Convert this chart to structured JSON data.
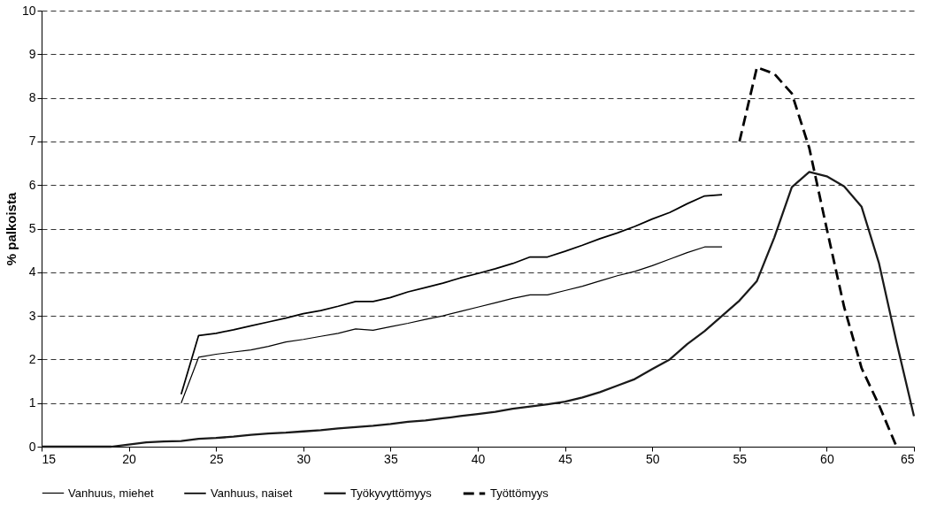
{
  "chart_data": {
    "type": "line",
    "ylabel": "% palkoista",
    "xlim": [
      15,
      65
    ],
    "xticks": [
      15,
      20,
      25,
      30,
      35,
      40,
      45,
      50,
      55,
      60,
      65
    ],
    "ylim": [
      0,
      10
    ],
    "yticks": [
      0,
      1,
      2,
      3,
      4,
      5,
      6,
      7,
      8,
      9,
      10
    ],
    "grid": "y",
    "legend": "bottom",
    "marker": "none",
    "series": [
      {
        "name": "Vanhuus, miehet",
        "color": "#000000",
        "line_style": "solid",
        "x": [
          23,
          24,
          25,
          26,
          27,
          28,
          29,
          30,
          31,
          32,
          33,
          34,
          35,
          36,
          37,
          38,
          39,
          40,
          41,
          42,
          43,
          44,
          45,
          46,
          47,
          48,
          49,
          50,
          51,
          52,
          53,
          54
        ],
        "values": [
          1.0,
          2.05,
          2.12,
          2.17,
          2.22,
          2.3,
          2.4,
          2.46,
          2.53,
          2.6,
          2.7,
          2.67,
          2.75,
          2.83,
          2.92,
          3.0,
          3.1,
          3.2,
          3.3,
          3.4,
          3.48,
          3.48,
          3.58,
          3.68,
          3.8,
          3.92,
          4.02,
          4.15,
          4.3,
          4.45,
          4.58,
          4.58
        ]
      },
      {
        "name": "Vanhuus, naiset",
        "color": "#000000",
        "line_style": "solid",
        "x": [
          23,
          24,
          25,
          26,
          27,
          28,
          29,
          30,
          31,
          32,
          33,
          34,
          35,
          36,
          37,
          38,
          39,
          40,
          41,
          42,
          43,
          44,
          45,
          46,
          47,
          48,
          49,
          50,
          51,
          52,
          53,
          54
        ],
        "values": [
          1.2,
          2.55,
          2.6,
          2.68,
          2.77,
          2.86,
          2.95,
          3.05,
          3.12,
          3.22,
          3.33,
          3.33,
          3.42,
          3.55,
          3.65,
          3.75,
          3.87,
          3.97,
          4.08,
          4.2,
          4.35,
          4.35,
          4.48,
          4.62,
          4.77,
          4.9,
          5.05,
          5.22,
          5.37,
          5.57,
          5.75,
          5.78
        ]
      },
      {
        "name": "Työkyvyttömyys",
        "color": "#1a1a1a",
        "line_style": "solid",
        "x": [
          15,
          16,
          17,
          18,
          19,
          20,
          21,
          22,
          23,
          24,
          25,
          26,
          27,
          28,
          29,
          30,
          31,
          32,
          33,
          34,
          35,
          36,
          37,
          38,
          39,
          40,
          41,
          42,
          43,
          44,
          45,
          46,
          47,
          48,
          49,
          50,
          51,
          52,
          53,
          54,
          55,
          56,
          57,
          58,
          59,
          60,
          61,
          62,
          63,
          64,
          65
        ],
        "values": [
          0,
          0,
          0,
          0,
          0,
          0.05,
          0.1,
          0.12,
          0.13,
          0.18,
          0.2,
          0.23,
          0.27,
          0.3,
          0.32,
          0.35,
          0.38,
          0.42,
          0.45,
          0.48,
          0.52,
          0.57,
          0.6,
          0.65,
          0.7,
          0.75,
          0.8,
          0.87,
          0.92,
          0.97,
          1.03,
          1.13,
          1.25,
          1.4,
          1.55,
          1.78,
          2.0,
          2.35,
          2.65,
          3.0,
          3.35,
          3.8,
          4.8,
          5.95,
          6.3,
          6.2,
          5.97,
          5.5,
          4.2,
          2.4,
          0.7
        ]
      },
      {
        "name": "Työttömyys",
        "color": "#000000",
        "line_style": "dashed",
        "x": [
          55,
          56,
          57,
          58,
          59,
          60,
          61,
          62,
          63,
          64
        ],
        "values": [
          7.0,
          8.7,
          8.55,
          8.1,
          6.85,
          5.0,
          3.2,
          1.8,
          0.95,
          0.0
        ]
      }
    ]
  }
}
